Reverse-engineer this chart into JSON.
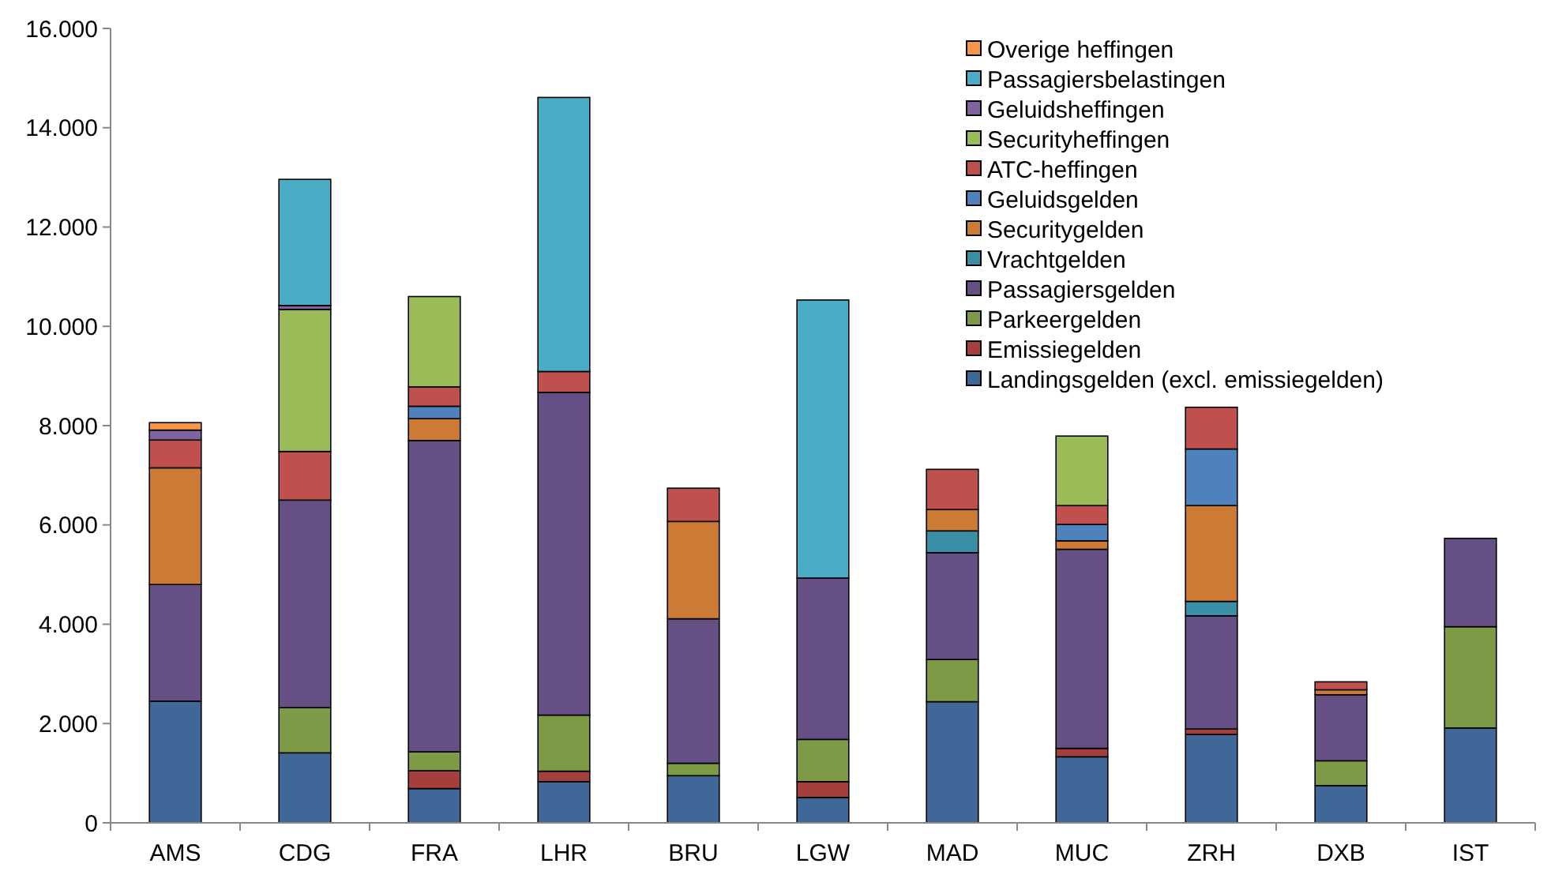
{
  "chart_data": {
    "type": "bar",
    "stacked": true,
    "categories": [
      "AMS",
      "CDG",
      "FRA",
      "LHR",
      "BRU",
      "LGW",
      "MAD",
      "MUC",
      "ZRH",
      "DXB",
      "IST"
    ],
    "ylim": [
      0,
      16000
    ],
    "yticks": [
      0,
      {
        "value": 2000,
        "label": "2.000"
      },
      {
        "value": 4000,
        "label": "4.000"
      },
      {
        "value": 6000,
        "label": "6.000"
      },
      {
        "value": 8000,
        "label": "8.000"
      },
      {
        "value": 10000,
        "label": "10.000"
      },
      {
        "value": 12000,
        "label": "12.000"
      },
      {
        "value": 14000,
        "label": "14.000"
      },
      {
        "value": 16000,
        "label": "16.000"
      }
    ],
    "grid": false,
    "legend": "top right",
    "series": [
      {
        "name": "Landingsgelden (excl. emissiegelden)",
        "color": "#3f6797",
        "values": [
          2450,
          1410,
          690,
          830,
          950,
          510,
          2440,
          1330,
          1780,
          750,
          1910
        ]
      },
      {
        "name": "Emissiegelden",
        "color": "#a43f3c",
        "values": [
          0,
          0,
          360,
          210,
          0,
          320,
          0,
          170,
          110,
          0,
          0
        ]
      },
      {
        "name": "Parkeergelden",
        "color": "#7d9a46",
        "values": [
          0,
          910,
          380,
          1130,
          250,
          850,
          850,
          0,
          0,
          500,
          2040
        ]
      },
      {
        "name": "Passagiersgelden",
        "color": "#664f84",
        "values": [
          2350,
          4180,
          6270,
          6500,
          2910,
          3250,
          2150,
          4010,
          2280,
          1330,
          1780
        ]
      },
      {
        "name": "Vrachtgelden",
        "color": "#3a8ea5",
        "values": [
          0,
          0,
          0,
          0,
          0,
          0,
          440,
          0,
          290,
          0,
          0
        ]
      },
      {
        "name": "Securitygelden",
        "color": "#cd7a34",
        "values": [
          2350,
          0,
          440,
          0,
          1960,
          0,
          430,
          170,
          1930,
          100,
          0
        ]
      },
      {
        "name": "Geluidsgelden",
        "color": "#4f81bd",
        "values": [
          0,
          0,
          250,
          0,
          0,
          0,
          0,
          330,
          1140,
          0,
          0
        ]
      },
      {
        "name": "ATC-heffingen",
        "color": "#c0504d",
        "values": [
          560,
          980,
          390,
          420,
          670,
          0,
          810,
          380,
          840,
          160,
          0
        ]
      },
      {
        "name": "Securityheffingen",
        "color": "#9bbb59",
        "values": [
          0,
          2860,
          1820,
          0,
          0,
          0,
          0,
          1400,
          0,
          0,
          0
        ]
      },
      {
        "name": "Geluidsheffingen",
        "color": "#8064a2",
        "values": [
          200,
          80,
          0,
          0,
          0,
          0,
          0,
          0,
          0,
          0,
          0
        ]
      },
      {
        "name": "Passagiersbelastingen",
        "color": "#4bacc6",
        "values": [
          0,
          2540,
          0,
          5520,
          0,
          5600,
          0,
          0,
          0,
          0,
          0
        ]
      },
      {
        "name": "Overige heffingen",
        "color": "#f79646",
        "values": [
          150,
          0,
          0,
          0,
          0,
          0,
          0,
          0,
          0,
          0,
          0
        ]
      }
    ]
  }
}
